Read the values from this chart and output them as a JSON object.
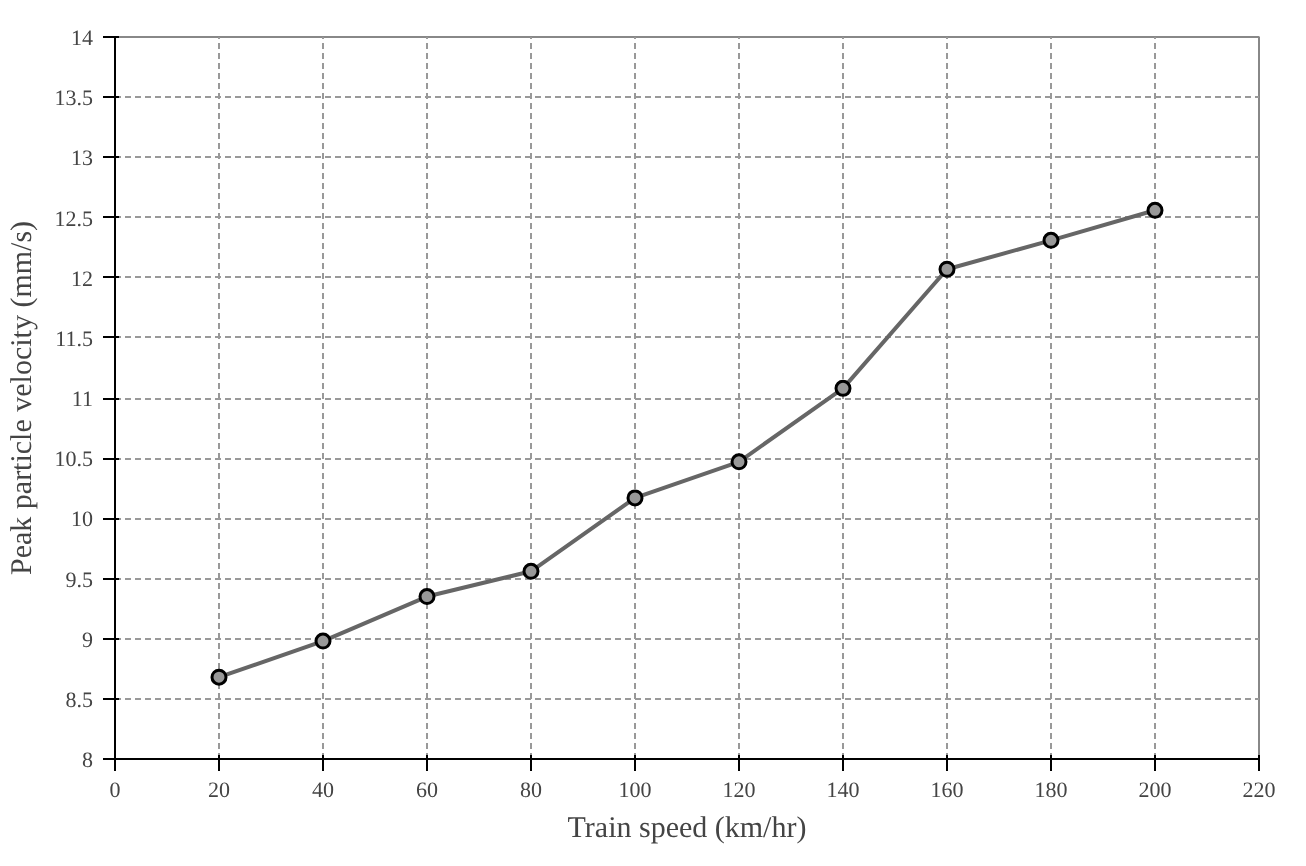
{
  "chart_data": {
    "type": "line",
    "xlabel": "Train speed (km/hr)",
    "ylabel": "Peak particle velocity (mm/s)",
    "x": [
      20,
      40,
      60,
      80,
      100,
      120,
      140,
      160,
      180,
      200
    ],
    "series": [
      {
        "color": "#666666",
        "values": [
          8.68,
          8.98,
          9.35,
          9.56,
          10.17,
          10.47,
          11.08,
          12.07,
          12.31,
          12.56
        ]
      }
    ],
    "xlim": [
      0,
      220
    ],
    "xticks": [
      0,
      20,
      40,
      60,
      80,
      100,
      120,
      140,
      160,
      180,
      200,
      220
    ],
    "ylim": [
      8,
      14
    ],
    "yticks": [
      8,
      8.5,
      9,
      9.5,
      10,
      10.5,
      11,
      11.5,
      12,
      12.5,
      13,
      13.5,
      14
    ],
    "grid": true,
    "marker": "circle",
    "line_style": "solid"
  }
}
